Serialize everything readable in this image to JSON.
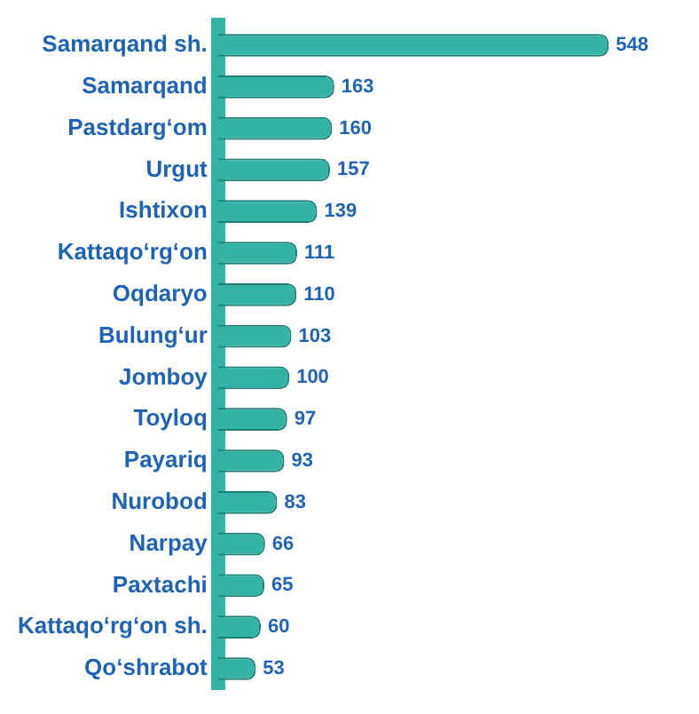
{
  "chart_data": {
    "type": "bar",
    "orientation": "horizontal",
    "categories": [
      "Samarqand sh.",
      "Samarqand",
      "Pastdarg‘om",
      "Urgut",
      "Ishtixon",
      "Kattaqo‘rg‘on",
      "Oqdaryo",
      "Bulung‘ur",
      "Jomboy",
      "Toyloq",
      "Payariq",
      "Nurobod",
      "Narpay",
      "Paxtachi",
      "Kattaqo‘rg‘on sh.",
      "Qo‘shrabot"
    ],
    "values": [
      548,
      163,
      160,
      157,
      139,
      111,
      110,
      103,
      100,
      97,
      93,
      83,
      66,
      65,
      60,
      53
    ],
    "color": "#33b3a3",
    "data_labels": true,
    "grid": false,
    "legend": false,
    "tick_labels": "y"
  }
}
